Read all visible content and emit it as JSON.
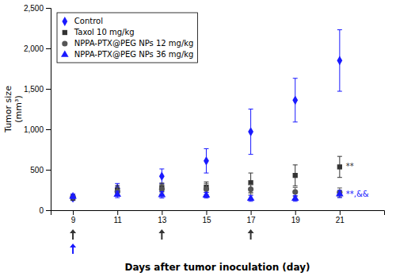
{
  "chart_data": {
    "type": "scatter",
    "x": [
      9,
      11,
      13,
      15,
      17,
      19,
      21
    ],
    "xlabel": "Days after tumor inoculation (day)",
    "ylabel": "Tumor size\n(mm³)",
    "xlim": [
      8,
      23
    ],
    "xticks": [
      9,
      11,
      13,
      15,
      17,
      19,
      21
    ],
    "ylim": [
      0,
      2500
    ],
    "yticks": [
      0,
      500,
      {
        "value": 1000,
        "label": "1,000"
      },
      {
        "value": 1500,
        "label": "1,500"
      },
      {
        "value": 2000,
        "label": "2,000"
      },
      {
        "value": 2500,
        "label": "2,500"
      }
    ],
    "grid": false,
    "legend": "upper left",
    "series": [
      {
        "name": "Control",
        "color": "#1a1aff",
        "marker": "diamond",
        "values": [
          150,
          270,
          420,
          610,
          970,
          1360,
          1850
        ],
        "errors": [
          30,
          60,
          90,
          150,
          280,
          270,
          380
        ]
      },
      {
        "name": "Taxol 10 mg/kg",
        "color": "#333333",
        "marker": "square",
        "values": [
          150,
          245,
          280,
          285,
          340,
          430,
          535
        ],
        "errors": [
          25,
          60,
          55,
          65,
          120,
          130,
          130
        ],
        "annotation": "**"
      },
      {
        "name": "NPPA-PTX@PEG NPs 12 mg/kg",
        "color": "#555555",
        "marker": "circle",
        "values": [
          165,
          230,
          260,
          260,
          260,
          225,
          220
        ],
        "errors": [
          30,
          55,
          60,
          70,
          60,
          55,
          55
        ]
      },
      {
        "name": "NPPA-PTX@PEG NPs 36 mg/kg",
        "color": "#1a1aff",
        "marker": "triangle",
        "values": [
          170,
          195,
          190,
          185,
          145,
          145,
          200
        ],
        "errors": [
          30,
          40,
          40,
          35,
          35,
          35,
          45
        ],
        "annotation": "**,&&"
      }
    ],
    "arrows": [
      {
        "color": "#333333",
        "x": [
          9,
          13,
          17
        ]
      },
      {
        "color": "#1a1aff",
        "x": [
          9
        ]
      }
    ]
  }
}
